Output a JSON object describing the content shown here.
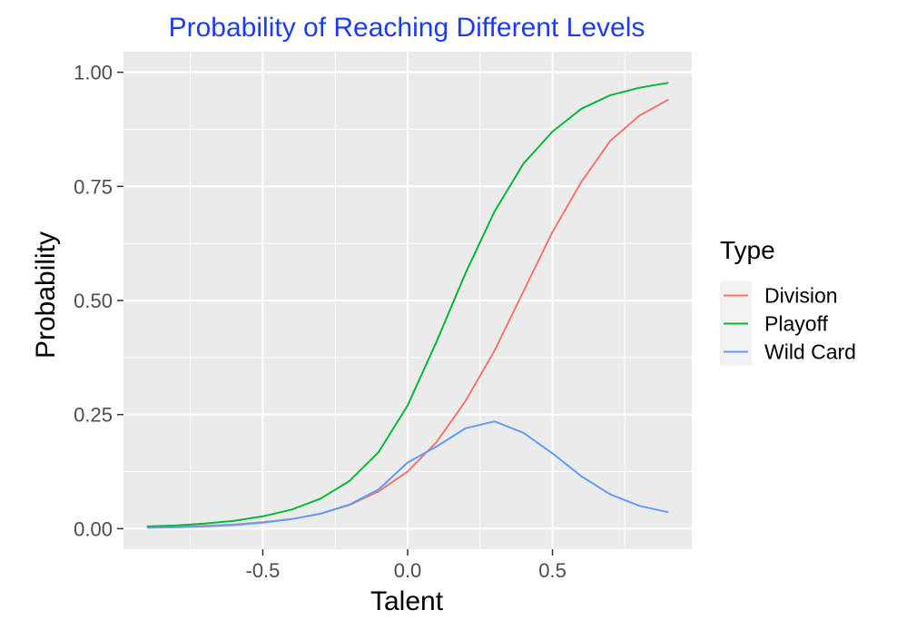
{
  "chart_data": {
    "type": "line",
    "title": "Probability of Reaching Different Levels",
    "xlabel": "Talent",
    "ylabel": "Probability",
    "xlim": [
      -0.9,
      0.9
    ],
    "ylim": [
      0,
      1
    ],
    "x_ticks": [
      -0.5,
      0.0,
      0.5
    ],
    "x_tick_labels": [
      "-0.5",
      "0.0",
      "0.5"
    ],
    "x_minor": [
      -0.75,
      -0.25,
      0.25,
      0.75
    ],
    "y_ticks": [
      0,
      0.25,
      0.5,
      0.75,
      1.0
    ],
    "y_tick_labels": [
      "0.00",
      "0.25",
      "0.50",
      "0.75",
      "1.00"
    ],
    "y_minor": [
      0.125,
      0.375,
      0.625,
      0.875
    ],
    "grid": true,
    "legend": {
      "title": "Type",
      "placement": "right"
    },
    "colors": {
      "title": "#1a3cff",
      "panel_background": "#ebebeb",
      "grid": "#ffffff"
    },
    "series": [
      {
        "name": "Division",
        "color": "#f8766d",
        "x": [
          -0.9,
          -0.8,
          -0.7,
          -0.6,
          -0.5,
          -0.4,
          -0.3,
          -0.2,
          -0.1,
          0.0,
          0.1,
          0.2,
          0.3,
          0.4,
          0.5,
          0.6,
          0.7,
          0.8,
          0.9
        ],
        "y": [
          0.003,
          0.004,
          0.006,
          0.009,
          0.014,
          0.021,
          0.033,
          0.052,
          0.082,
          0.125,
          0.19,
          0.28,
          0.39,
          0.52,
          0.65,
          0.76,
          0.85,
          0.905,
          0.94
        ]
      },
      {
        "name": "Playoff",
        "color": "#00ba38",
        "x": [
          -0.9,
          -0.8,
          -0.7,
          -0.6,
          -0.5,
          -0.4,
          -0.3,
          -0.2,
          -0.1,
          0.0,
          0.1,
          0.2,
          0.3,
          0.4,
          0.5,
          0.6,
          0.7,
          0.8,
          0.9
        ],
        "y": [
          0.005,
          0.007,
          0.011,
          0.017,
          0.027,
          0.042,
          0.066,
          0.105,
          0.168,
          0.27,
          0.41,
          0.56,
          0.695,
          0.8,
          0.87,
          0.92,
          0.95,
          0.966,
          0.977
        ]
      },
      {
        "name": "Wild Card",
        "color": "#619cff",
        "x": [
          -0.9,
          -0.8,
          -0.7,
          -0.6,
          -0.5,
          -0.4,
          -0.3,
          -0.2,
          -0.1,
          0.0,
          0.1,
          0.2,
          0.3,
          0.4,
          0.5,
          0.6,
          0.7,
          0.8,
          0.9
        ],
        "y": [
          0.002,
          0.003,
          0.005,
          0.008,
          0.013,
          0.021,
          0.033,
          0.053,
          0.086,
          0.145,
          0.18,
          0.22,
          0.235,
          0.21,
          0.165,
          0.115,
          0.075,
          0.05,
          0.036
        ]
      }
    ]
  }
}
